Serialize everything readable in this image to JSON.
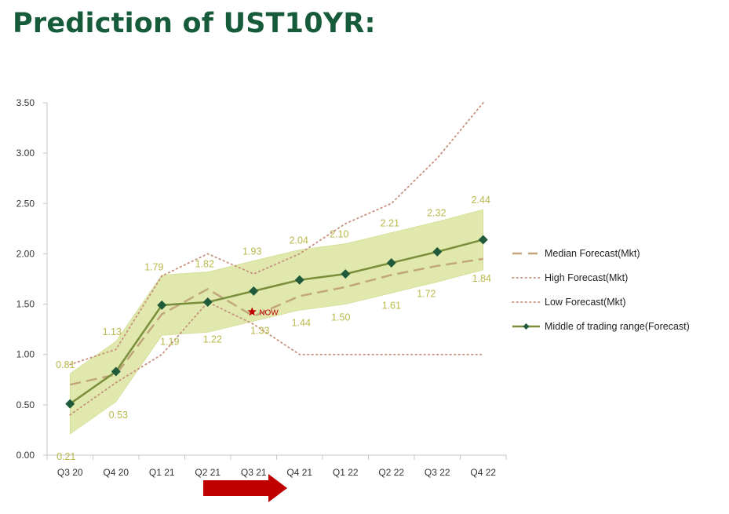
{
  "page_title": "Prediction of UST10YR:",
  "colors": {
    "title": "#175c3a",
    "band": "#dde6a6",
    "band_edge": "#c9d47a",
    "median": "#c2a67c",
    "dotted": "#c7907c",
    "middle_line": "#7a8f3c",
    "middle_marker": "#1f5a3a",
    "value_labels": "#b8b84a",
    "now": "#c00000",
    "arrow": "#c00000"
  },
  "chart_data": {
    "type": "line",
    "categories": [
      "Q3 20",
      "Q4 20",
      "Q1 21",
      "Q2 21",
      "Q3 21",
      "Q4 21",
      "Q1 22",
      "Q2 22",
      "Q3 22",
      "Q4 22"
    ],
    "ylim": [
      0,
      3.5
    ],
    "yticks": [
      "0.00",
      "0.50",
      "1.00",
      "1.50",
      "2.00",
      "2.50",
      "3.00",
      "3.50"
    ],
    "grid": false,
    "legend_position": "right",
    "series": [
      {
        "name": "Median Forecast(Mkt)",
        "style": "dashed",
        "values": [
          0.7,
          0.8,
          1.4,
          1.65,
          1.38,
          1.58,
          1.67,
          1.79,
          1.88,
          1.95
        ]
      },
      {
        "name": "High Forecast(Mkt)",
        "style": "dotted",
        "values": [
          0.9,
          1.05,
          1.78,
          2.0,
          1.8,
          2.0,
          2.3,
          2.5,
          2.95,
          3.5
        ]
      },
      {
        "name": "Low Forecast(Mkt)",
        "style": "dotted",
        "values": [
          0.4,
          0.72,
          1.0,
          1.52,
          1.3,
          1.0,
          1.0,
          1.0,
          1.0,
          1.0
        ]
      },
      {
        "name": "Middle of trading range(Forecast)",
        "style": "solid-diamond",
        "values": [
          0.51,
          0.83,
          1.49,
          1.52,
          1.63,
          1.74,
          1.8,
          1.91,
          2.02,
          2.14
        ]
      }
    ],
    "band": {
      "upper": [
        0.81,
        1.13,
        1.79,
        1.82,
        1.93,
        2.04,
        2.1,
        2.21,
        2.32,
        2.44
      ],
      "lower": [
        0.21,
        0.53,
        1.19,
        1.22,
        1.33,
        1.44,
        1.5,
        1.61,
        1.72,
        1.84
      ],
      "upper_labels": [
        "0.81",
        "1.13",
        "1.79",
        "1.82",
        "1.93",
        "2.04",
        "2.10",
        "2.21",
        "2.32",
        "2.44"
      ],
      "lower_labels": [
        "0.21",
        "0.53",
        "1.19",
        "1.22",
        "1.33",
        "1.44",
        "1.50",
        "1.61",
        "1.72",
        "1.84"
      ]
    },
    "annotations": [
      {
        "text": "NOW",
        "x": "Q3 21",
        "y": 1.33,
        "marker": "star"
      }
    ]
  }
}
